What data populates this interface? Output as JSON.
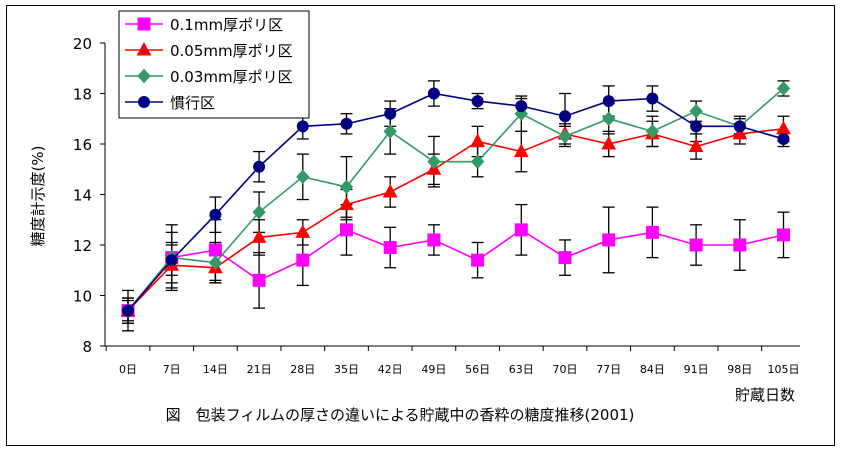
{
  "chart_data": {
    "type": "line",
    "caption": "図　包装フィルムの厚さの違いによる貯蔵中の香粋の糖度推移(2001)",
    "xlabel": "貯蔵日数",
    "ylabel": "糖度計示度(%)",
    "ylim": [
      8,
      20
    ],
    "yticks": [
      "8",
      "10",
      "12",
      "14",
      "16",
      "18",
      "20"
    ],
    "categories": [
      "0日",
      "7日",
      "14日",
      "21日",
      "28日",
      "35日",
      "42日",
      "49日",
      "56日",
      "63日",
      "70日",
      "77日",
      "84日",
      "91日",
      "98日",
      "105日"
    ],
    "grid": false,
    "legend_position": "top-left",
    "series": [
      {
        "name": "0.1mm厚ポリ区",
        "color": "#FF00FF",
        "marker": "square",
        "values": [
          9.4,
          11.5,
          11.8,
          10.6,
          11.4,
          12.6,
          11.9,
          12.2,
          11.4,
          12.6,
          11.5,
          12.2,
          12.5,
          12.0,
          12.0,
          12.4
        ],
        "errors": [
          0.8,
          1.3,
          1.2,
          1.1,
          1.0,
          1.0,
          0.8,
          0.6,
          0.7,
          1.0,
          0.7,
          1.3,
          1.0,
          0.8,
          1.0,
          0.9
        ]
      },
      {
        "name": "0.05mm厚ポリ区",
        "color": "#FF0000",
        "marker": "triangle",
        "values": [
          9.4,
          11.2,
          11.1,
          12.3,
          12.5,
          13.6,
          14.1,
          15.0,
          16.1,
          15.7,
          16.4,
          16.0,
          16.4,
          15.9,
          16.4,
          16.6
        ],
        "errors": [
          0.5,
          0.9,
          0.6,
          0.7,
          0.5,
          0.6,
          0.6,
          0.6,
          0.6,
          0.8,
          0.4,
          0.5,
          0.5,
          0.5,
          0.4,
          0.5
        ]
      },
      {
        "name": "0.03mm厚ポリ区",
        "color": "#339966",
        "marker": "diamond",
        "values": [
          9.4,
          11.5,
          11.3,
          13.3,
          14.7,
          14.3,
          16.5,
          15.3,
          15.3,
          17.2,
          16.3,
          17.0,
          16.5,
          17.3,
          16.7,
          18.2
        ],
        "errors": [
          0.5,
          1.0,
          0.8,
          0.8,
          0.9,
          1.2,
          0.9,
          1.0,
          0.6,
          0.7,
          0.4,
          0.6,
          0.6,
          0.4,
          0.4,
          0.3
        ]
      },
      {
        "name": "慣行区",
        "color": "#000080",
        "marker": "circle",
        "values": [
          9.4,
          11.4,
          13.2,
          15.1,
          16.7,
          16.8,
          17.2,
          18.0,
          17.7,
          17.5,
          17.1,
          17.7,
          17.8,
          16.7,
          16.7,
          16.2
        ],
        "errors": [
          0.4,
          0.6,
          0.7,
          0.6,
          0.5,
          0.4,
          0.5,
          0.5,
          0.3,
          0.3,
          0.9,
          0.6,
          0.5,
          0.6,
          0.3,
          0.3
        ]
      }
    ]
  }
}
